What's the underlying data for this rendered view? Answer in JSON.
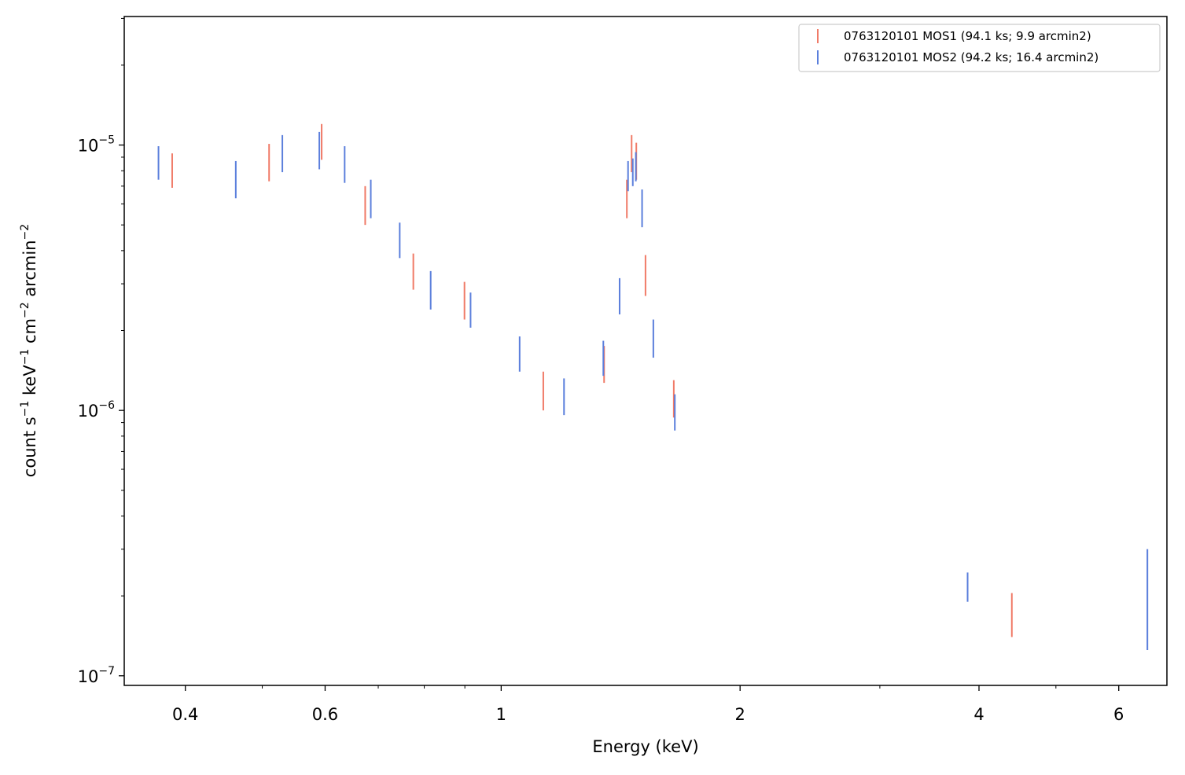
{
  "chart_data": {
    "type": "scatter",
    "xlabel": "Energy (keV)",
    "ylabel_parts": {
      "t1": "count s",
      "e1": "−1",
      "t2": " keV",
      "e2": "−1",
      "t3": " cm",
      "e3": "−2",
      "t4": " arcmin",
      "e4": "−2"
    },
    "x_scale": "log",
    "y_scale": "log",
    "xlim": [
      0.335,
      6.9
    ],
    "ylim": [
      9.2e-08,
      3.05e-05
    ],
    "x_ticks": [
      {
        "value": 0.4,
        "label": "0.4"
      },
      {
        "value": 0.6,
        "label": "0.6"
      },
      {
        "value": 1,
        "label": "1"
      },
      {
        "value": 2,
        "label": "2"
      },
      {
        "value": 4,
        "label": "4"
      },
      {
        "value": 6,
        "label": "6"
      }
    ],
    "x_minor_ticks": [
      0.5,
      0.7,
      0.8,
      0.9,
      3,
      5
    ],
    "y_ticks": [
      {
        "value": 1e-05,
        "base": "10",
        "exp": "−5"
      },
      {
        "value": 1e-06,
        "base": "10",
        "exp": "−6"
      },
      {
        "value": 1e-07,
        "base": "10",
        "exp": "−7"
      }
    ],
    "y_minor_ticks": [
      2e-07,
      3e-07,
      4e-07,
      5e-07,
      6e-07,
      7e-07,
      8e-07,
      9e-07,
      2e-06,
      3e-06,
      4e-06,
      5e-06,
      6e-06,
      7e-06,
      8e-06,
      9e-06,
      2e-05,
      3e-05
    ],
    "legend_position": "top-right",
    "series": [
      {
        "name": "0763120101 MOS1 (94.1 ks; 9.9 arcmin2)",
        "color": "#f07b68",
        "points": [
          {
            "x": 0.385,
            "ylo": 6.9e-06,
            "yhi": 9.3e-06
          },
          {
            "x": 0.51,
            "ylo": 7.3e-06,
            "yhi": 1.01e-05
          },
          {
            "x": 0.594,
            "ylo": 8.8e-06,
            "yhi": 1.2e-05
          },
          {
            "x": 0.674,
            "ylo": 5e-06,
            "yhi": 7e-06
          },
          {
            "x": 0.775,
            "ylo": 2.85e-06,
            "yhi": 3.9e-06
          },
          {
            "x": 0.899,
            "ylo": 2.2e-06,
            "yhi": 3.05e-06
          },
          {
            "x": 1.13,
            "ylo": 1e-06,
            "yhi": 1.4e-06
          },
          {
            "x": 1.348,
            "ylo": 1.27e-06,
            "yhi": 1.75e-06
          },
          {
            "x": 1.44,
            "ylo": 5.3e-06,
            "yhi": 7.4e-06
          },
          {
            "x": 1.46,
            "ylo": 7.9e-06,
            "yhi": 1.09e-05
          },
          {
            "x": 1.48,
            "ylo": 7.4e-06,
            "yhi": 1.02e-05
          },
          {
            "x": 1.52,
            "ylo": 2.7e-06,
            "yhi": 3.85e-06
          },
          {
            "x": 1.65,
            "ylo": 9.4e-07,
            "yhi": 1.3e-06
          },
          {
            "x": 4.4,
            "ylo": 1.4e-07,
            "yhi": 2.05e-07
          }
        ]
      },
      {
        "name": "0763120101 MOS2 (94.2 ks; 16.4 arcmin2)",
        "color": "#5b7fdc",
        "points": [
          {
            "x": 0.37,
            "ylo": 7.4e-06,
            "yhi": 9.9e-06
          },
          {
            "x": 0.463,
            "ylo": 6.3e-06,
            "yhi": 8.7e-06
          },
          {
            "x": 0.53,
            "ylo": 7.9e-06,
            "yhi": 1.09e-05
          },
          {
            "x": 0.59,
            "ylo": 8.1e-06,
            "yhi": 1.12e-05
          },
          {
            "x": 0.635,
            "ylo": 7.2e-06,
            "yhi": 9.9e-06
          },
          {
            "x": 0.685,
            "ylo": 5.3e-06,
            "yhi": 7.4e-06
          },
          {
            "x": 0.745,
            "ylo": 3.75e-06,
            "yhi": 5.1e-06
          },
          {
            "x": 0.815,
            "ylo": 2.4e-06,
            "yhi": 3.35e-06
          },
          {
            "x": 0.915,
            "ylo": 2.05e-06,
            "yhi": 2.78e-06
          },
          {
            "x": 1.055,
            "ylo": 1.4e-06,
            "yhi": 1.9e-06
          },
          {
            "x": 1.2,
            "ylo": 9.6e-07,
            "yhi": 1.32e-06
          },
          {
            "x": 1.345,
            "ylo": 1.35e-06,
            "yhi": 1.83e-06
          },
          {
            "x": 1.41,
            "ylo": 2.3e-06,
            "yhi": 3.15e-06
          },
          {
            "x": 1.445,
            "ylo": 6.7e-06,
            "yhi": 8.7e-06
          },
          {
            "x": 1.465,
            "ylo": 7e-06,
            "yhi": 8.9e-06
          },
          {
            "x": 1.478,
            "ylo": 7.3e-06,
            "yhi": 9.4e-06
          },
          {
            "x": 1.505,
            "ylo": 4.9e-06,
            "yhi": 6.8e-06
          },
          {
            "x": 1.555,
            "ylo": 1.58e-06,
            "yhi": 2.2e-06
          },
          {
            "x": 1.655,
            "ylo": 8.4e-07,
            "yhi": 1.15e-06
          },
          {
            "x": 3.87,
            "ylo": 1.9e-07,
            "yhi": 2.45e-07
          },
          {
            "x": 6.52,
            "ylo": 1.25e-07,
            "yhi": 3e-07
          }
        ]
      }
    ]
  }
}
